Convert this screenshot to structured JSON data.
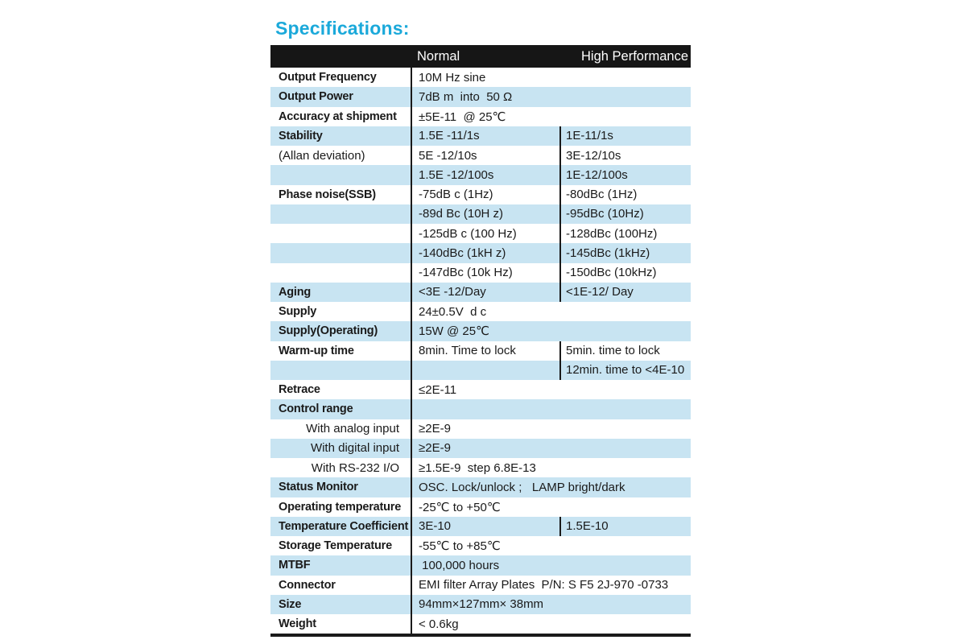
{
  "page": {
    "title": "Specifications:"
  },
  "colors": {
    "accent": "#1ba9da",
    "header-bg": "#161616",
    "row-blue": "#c8e4f2",
    "line": "#1a1a1a",
    "text": "#1a1a1a"
  },
  "table": {
    "header": {
      "normal": "Normal",
      "high": "High Performance"
    },
    "rows": [
      {
        "label": "Output Frequency",
        "value": "10M Hz sine"
      },
      {
        "label": "Output Power",
        "value": "7dB m  into  50 Ω"
      },
      {
        "label": "Accuracy at shipment",
        "value": "±5E-11  @ 25℃"
      },
      {
        "label": "Stability",
        "value": "1.5E -11/1s",
        "value2": "1E-11/1s"
      },
      {
        "label": "(Allan deviation)",
        "value": "5E -12/10s",
        "value2": "3E-12/10s"
      },
      {
        "label": "",
        "value": "1.5E -12/100s",
        "value2": "1E-12/100s"
      },
      {
        "label": "Phase noise(SSB)",
        "value": "-75dB c (1Hz)",
        "value2": "-80dBc (1Hz)"
      },
      {
        "label": "",
        "value": "-89d Bc (10H z)",
        "value2": "-95dBc (10Hz)"
      },
      {
        "label": "",
        "value": "-125dB c (100 Hz)",
        "value2": "-128dBc (100Hz)"
      },
      {
        "label": "",
        "value": "-140dBc (1kH z)",
        "value2": "-145dBc (1kHz)"
      },
      {
        "label": "",
        "value": "-147dBc (10k Hz)",
        "value2": "-150dBc (10kHz)"
      },
      {
        "label": "Aging",
        "value": "<3E -12/Day",
        "value2": "<1E-12/ Day"
      },
      {
        "label": "Supply",
        "value": "24±0.5V  d c"
      },
      {
        "label": "Supply(Operating)",
        "value": "15W @ 25℃"
      },
      {
        "label": "Warm-up time",
        "value": "8min. Time to lock",
        "value2": "5min. time to lock"
      },
      {
        "label": "",
        "value": "",
        "value2": "12min. time to <4E-10"
      },
      {
        "label": "Retrace",
        "value": "≤2E-11"
      },
      {
        "label": "Control range",
        "value": ""
      },
      {
        "label": "With analog input",
        "value": "≥2E-9"
      },
      {
        "label": "With digital input",
        "value": "≥2E-9"
      },
      {
        "label": "With RS-232 I/O",
        "value": "≥1.5E-9  step 6.8E-13"
      },
      {
        "label": "Status Monitor",
        "value": "OSC. Lock/unlock ;   LAMP bright/dark"
      },
      {
        "label": "Operating temperature",
        "value": "-25℃ to +50℃"
      },
      {
        "label": "Temperature Coefficient",
        "value": "3E-10",
        "value2": "1.5E-10"
      },
      {
        "label": "Storage Temperature",
        "value": "-55℃ to +85℃"
      },
      {
        "label": "MTBF",
        "value": " 100,000 hours"
      },
      {
        "label": "Connector",
        "value": "EMI filter Array Plates  P/N: S F5 2J-970 -0733"
      },
      {
        "label": "Size",
        "value": "94mm×127mm× 38mm"
      },
      {
        "label": "Weight",
        "value": "< 0.6kg"
      }
    ]
  }
}
